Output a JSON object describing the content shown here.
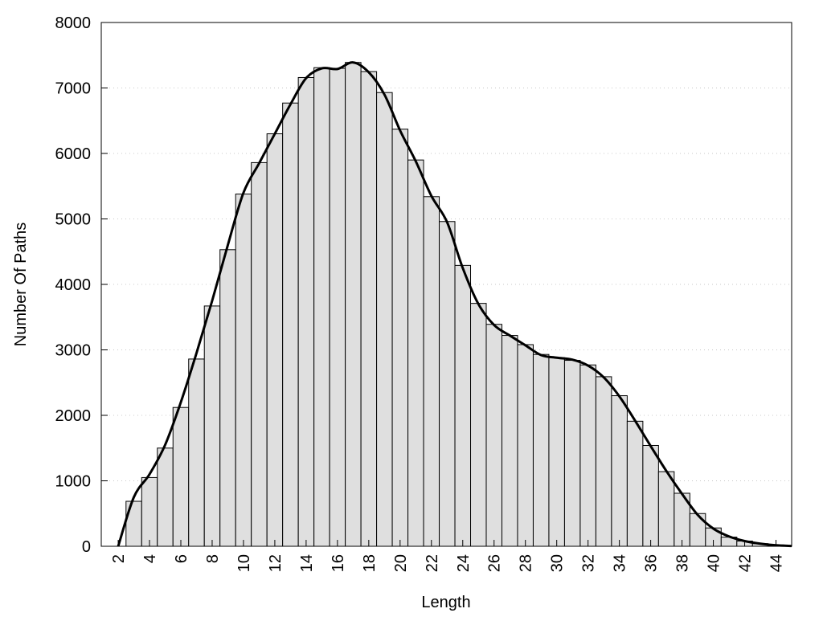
{
  "chart_data": {
    "type": "bar",
    "xlabel": "Length",
    "ylabel": "Number Of Paths",
    "xlim": [
      0.92,
      45
    ],
    "ylim": [
      0,
      8000
    ],
    "yticks": [
      0,
      1000,
      2000,
      3000,
      4000,
      5000,
      6000,
      7000,
      8000
    ],
    "xticks": [
      2,
      4,
      6,
      8,
      10,
      12,
      14,
      16,
      18,
      20,
      22,
      24,
      26,
      28,
      30,
      32,
      34,
      36,
      38,
      40,
      42,
      44
    ],
    "grid": "horizontal-dotted",
    "bar_color": "#dfdfdf",
    "line_color": "#000000",
    "x": [
      3,
      4,
      5,
      6,
      7,
      8,
      9,
      10,
      11,
      12,
      13,
      14,
      15,
      16,
      17,
      18,
      19,
      20,
      21,
      22,
      23,
      24,
      25,
      26,
      27,
      28,
      29,
      30,
      31,
      32,
      33,
      34,
      35,
      36,
      37,
      38,
      39,
      40,
      41,
      42,
      43,
      44
    ],
    "values": [
      687,
      1050,
      1500,
      2120,
      2860,
      3670,
      4530,
      5380,
      5860,
      6300,
      6770,
      7160,
      7310,
      7300,
      7390,
      7250,
      6930,
      6370,
      5900,
      5340,
      4960,
      4290,
      3710,
      3390,
      3220,
      3080,
      2930,
      2880,
      2840,
      2770,
      2590,
      2300,
      1910,
      1540,
      1140,
      810,
      500,
      280,
      140,
      80,
      40,
      20
    ],
    "curve": {
      "x": [
        2,
        3,
        4,
        5,
        6,
        7,
        8,
        9,
        10,
        11,
        12,
        13,
        14,
        15,
        16,
        17,
        18,
        19,
        20,
        21,
        22,
        23,
        24,
        25,
        26,
        27,
        28,
        29,
        30,
        31,
        32,
        33,
        34,
        35,
        36,
        37,
        38,
        39,
        40,
        41,
        42,
        43,
        44,
        45
      ],
      "y": [
        0,
        750,
        1100,
        1550,
        2200,
        2950,
        3750,
        4600,
        5400,
        5850,
        6300,
        6750,
        7150,
        7300,
        7290,
        7390,
        7240,
        6900,
        6350,
        5880,
        5350,
        4950,
        4250,
        3700,
        3380,
        3220,
        3070,
        2920,
        2880,
        2850,
        2760,
        2580,
        2290,
        1920,
        1530,
        1150,
        800,
        480,
        270,
        150,
        80,
        40,
        15,
        5
      ]
    }
  }
}
